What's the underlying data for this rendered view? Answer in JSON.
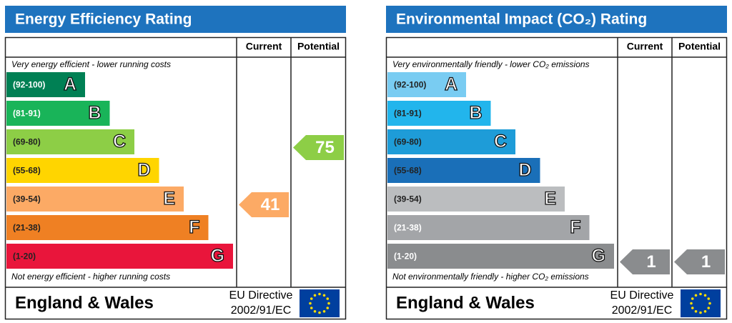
{
  "panels": [
    {
      "title": "Energy Efficiency Rating",
      "headers": [
        "Current",
        "Potential"
      ],
      "top_note": "Very energy efficient - lower running costs",
      "bottom_note": "Not energy efficient - higher running costs",
      "bands": [
        {
          "range": "(92-100)",
          "letter": "A",
          "color": "#008054",
          "text_color": "#ffffff"
        },
        {
          "range": "(81-91)",
          "letter": "B",
          "color": "#19b459",
          "text_color": "#ffffff"
        },
        {
          "range": "(69-80)",
          "letter": "C",
          "color": "#8dce46",
          "text_color": "#222222"
        },
        {
          "range": "(55-68)",
          "letter": "D",
          "color": "#ffd500",
          "text_color": "#222222"
        },
        {
          "range": "(39-54)",
          "letter": "E",
          "color": "#fcaa65",
          "text_color": "#222222"
        },
        {
          "range": "(21-38)",
          "letter": "F",
          "color": "#ef8023",
          "text_color": "#222222"
        },
        {
          "range": "(1-20)",
          "letter": "G",
          "color": "#e9153b",
          "text_color": "#222222"
        }
      ],
      "current": 41,
      "potential": 75,
      "footer": {
        "region": "England & Wales",
        "directive": "EU Directive",
        "code": "2002/91/EC"
      }
    },
    {
      "title": "Environmental Impact (CO₂) Rating",
      "headers": [
        "Current",
        "Potential"
      ],
      "top_note": "Very environmentally friendly - lower CO₂ emissions",
      "bottom_note": "Not environmentally friendly - higher CO₂ emissions",
      "bands": [
        {
          "range": "(92-100)",
          "letter": "A",
          "color": "#79ccf2",
          "text_color": "#222222"
        },
        {
          "range": "(81-91)",
          "letter": "B",
          "color": "#22b5ec",
          "text_color": "#222222"
        },
        {
          "range": "(69-80)",
          "letter": "C",
          "color": "#1e9cd8",
          "text_color": "#222222"
        },
        {
          "range": "(55-68)",
          "letter": "D",
          "color": "#1a6fb8",
          "text_color": "#222222"
        },
        {
          "range": "(39-54)",
          "letter": "E",
          "color": "#bbbdbf",
          "text_color": "#222222"
        },
        {
          "range": "(21-38)",
          "letter": "F",
          "color": "#a3a5a8",
          "text_color": "#ffffff"
        },
        {
          "range": "(1-20)",
          "letter": "G",
          "color": "#8a8c8e",
          "text_color": "#ffffff"
        }
      ],
      "current": 1,
      "potential": 1,
      "footer": {
        "region": "England & Wales",
        "directive": "EU Directive",
        "code": "2002/91/EC"
      }
    }
  ]
}
